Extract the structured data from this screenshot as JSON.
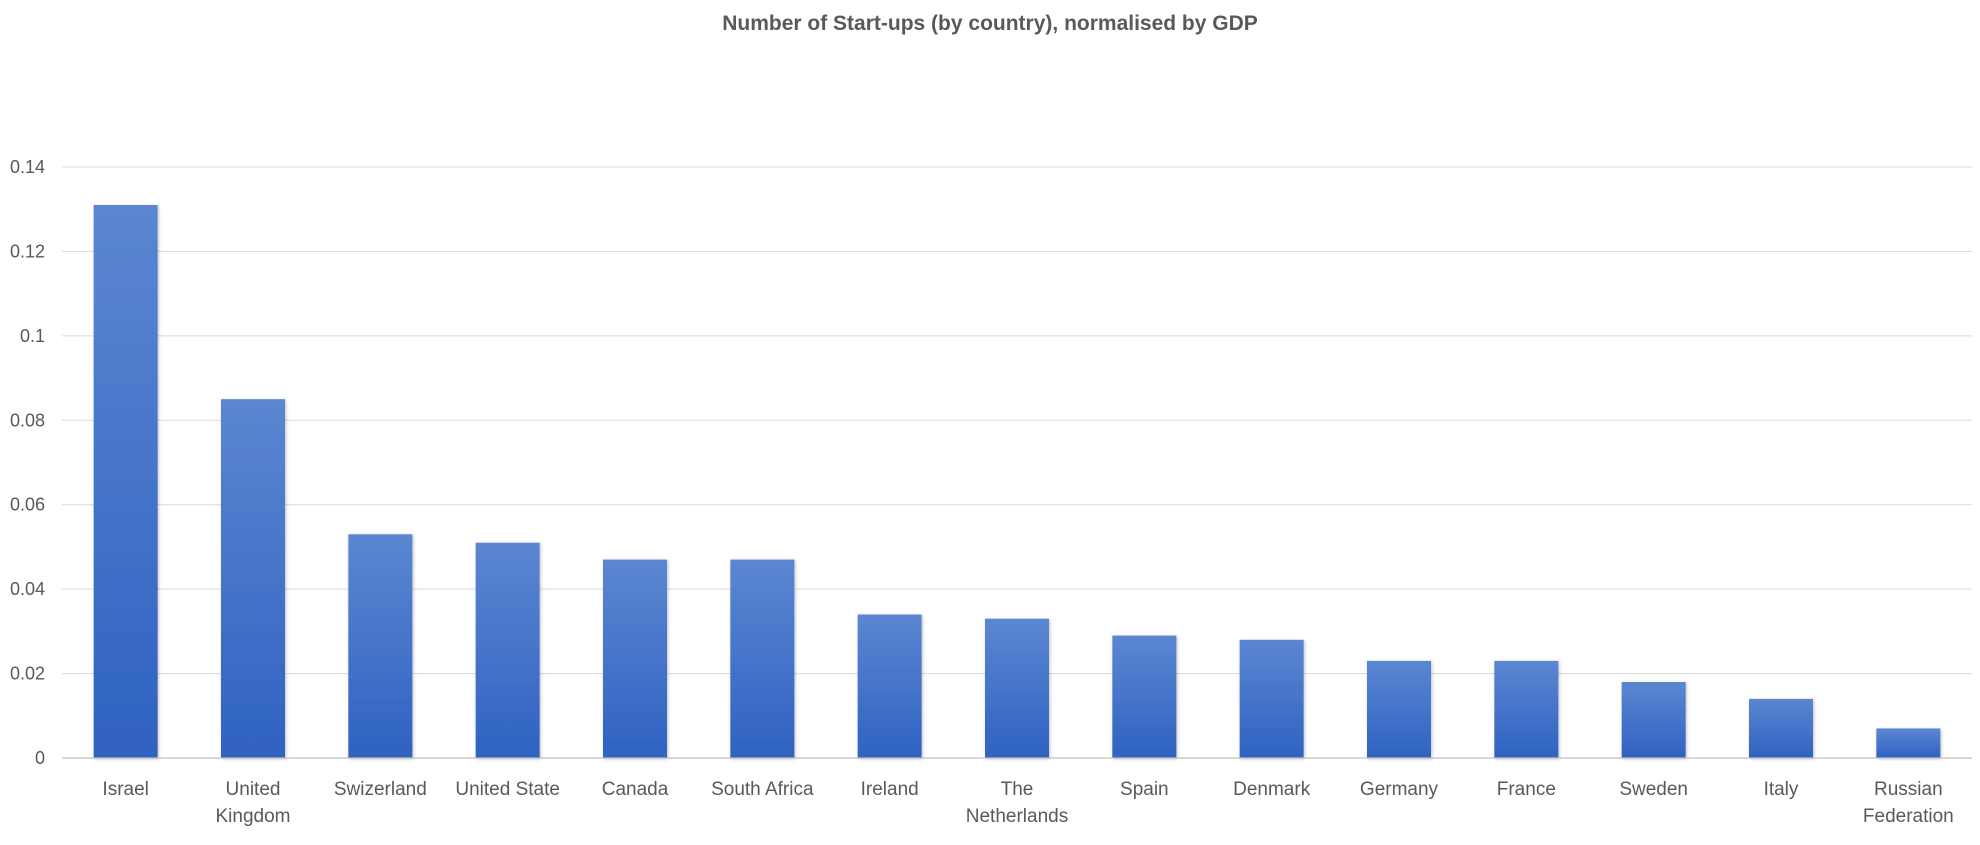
{
  "chart_data": {
    "type": "bar",
    "title": "Number of Start-ups (by country), normalised by GDP",
    "xlabel": "",
    "ylabel": "",
    "ylim": [
      0,
      0.14
    ],
    "yticks": [
      "0",
      "0.02",
      "0.04",
      "0.06",
      "0.08",
      "0.1",
      "0.12",
      "0.14"
    ],
    "grid": true,
    "legend": "none",
    "bar_color_top": "#5b86d1",
    "bar_color_bottom": "#2f62c2",
    "categories": [
      [
        "Israel"
      ],
      [
        "United",
        "Kingdom"
      ],
      [
        "Swizerland"
      ],
      [
        "United State"
      ],
      [
        "Canada"
      ],
      [
        "South Africa"
      ],
      [
        "Ireland"
      ],
      [
        "The",
        "Netherlands"
      ],
      [
        "Spain"
      ],
      [
        "Denmark"
      ],
      [
        "Germany"
      ],
      [
        "France"
      ],
      [
        "Sweden"
      ],
      [
        "Italy"
      ],
      [
        "Russian",
        "Federation"
      ]
    ],
    "values": [
      0.131,
      0.085,
      0.053,
      0.051,
      0.047,
      0.047,
      0.034,
      0.033,
      0.029,
      0.028,
      0.023,
      0.023,
      0.018,
      0.014,
      0.007
    ]
  }
}
